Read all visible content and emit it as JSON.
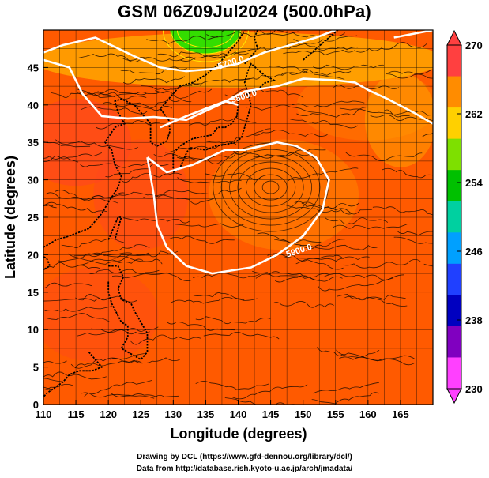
{
  "title": "GSM 06Z09Jul2024 (500.0hPa)",
  "map": {
    "xlabel": "Longitude (degrees)",
    "ylabel": "Latitude  (degrees)",
    "x_ticks": [
      "110",
      "115",
      "120",
      "125",
      "130",
      "135",
      "140",
      "145",
      "150",
      "155",
      "160",
      "165"
    ],
    "y_ticks": [
      "0",
      "5",
      "10",
      "15",
      "20",
      "25",
      "30",
      "35",
      "40",
      "45"
    ],
    "lon_range": [
      110,
      170
    ],
    "lat_range": [
      0,
      50
    ],
    "contour_labels": [
      "5700.0",
      "5800.0",
      "5900.0"
    ],
    "field_colors": {
      "background": "#ff5a00",
      "warm": "#ff4a1a",
      "subtropical": "#ff7a00",
      "north": "#ffb000",
      "cold_core": "#33dd00"
    }
  },
  "colorbar": {
    "ticks": [
      "270",
      "262",
      "254",
      "246",
      "238",
      "230"
    ],
    "colors": [
      "#ff4040",
      "#ff8c00",
      "#ffd000",
      "#7ee000",
      "#00c000",
      "#00d0a0",
      "#00a0ff",
      "#2040ff",
      "#0000c0",
      "#8000c0",
      "#ff40ff"
    ]
  },
  "credits": {
    "line1": "Drawing by DCL (https://www.gfd-dennou.org/library/dcl/)",
    "line2": "Data from http://database.rish.kyoto-u.ac.jp/arch/jmadata/"
  }
}
